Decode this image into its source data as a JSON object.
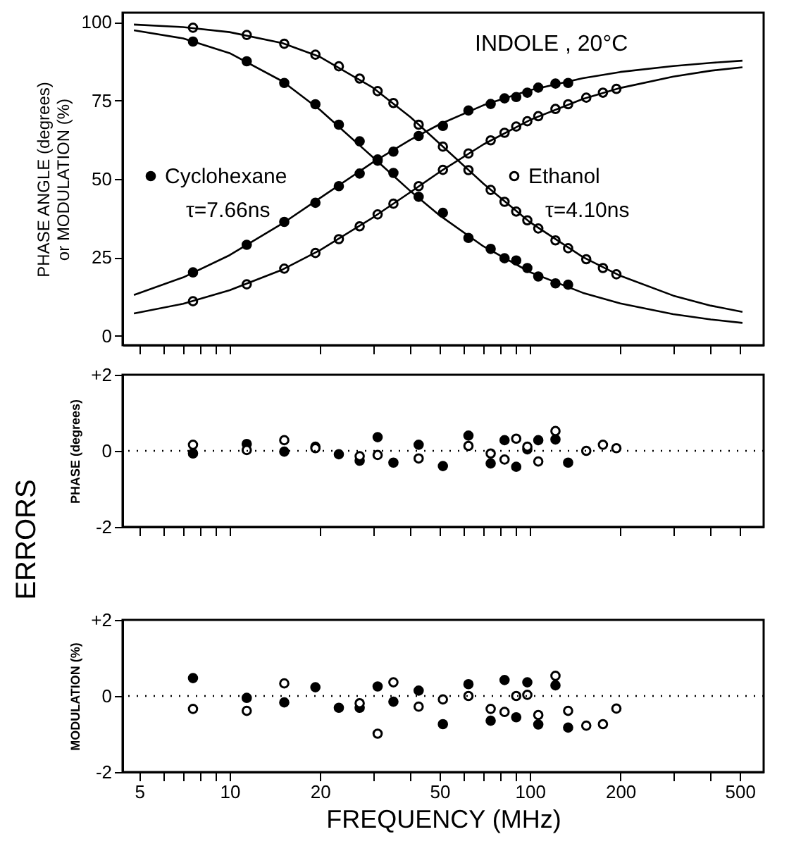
{
  "chart_data": [
    {
      "type": "scatter",
      "ylabel": "PHASE ANGLE (degrees)\nor MODULATION (%)",
      "annotations": [
        "INDOLE , 20°C",
        "τ=7.66ns",
        "τ=4.10ns"
      ],
      "legend": "left",
      "marker": "circle",
      "grid": false,
      "tick_labels": "y",
      "log": "x",
      "xlim": [
        4.4,
        600
      ],
      "ylim": [
        -3,
        103
      ],
      "xticks": [
        5,
        {
          "value": 6,
          "label": null
        },
        {
          "value": 7,
          "label": null
        },
        {
          "value": 8,
          "label": null
        },
        {
          "value": 9,
          "label": null
        },
        10,
        20,
        {
          "value": 30,
          "label": null
        },
        {
          "value": 40,
          "label": null
        },
        50,
        {
          "value": 60,
          "label": null
        },
        {
          "value": 70,
          "label": null
        },
        {
          "value": 80,
          "label": null
        },
        {
          "value": 90,
          "label": null
        },
        100,
        200,
        {
          "value": 300,
          "label": null
        },
        {
          "value": 400,
          "label": null
        },
        500
      ],
      "yticks": [
        0,
        25,
        50,
        75,
        100
      ],
      "x": [
        7.55,
        11.4,
        15.2,
        19.3,
        23.1,
        27.1,
        31.1,
        35.1,
        42.6,
        51.3,
        62.4,
        74,
        82.3,
        90,
        98,
        106.6,
        121.6,
        134,
        154,
        175,
        194
      ],
      "series": [
        {
          "name": "Cyclohexane",
          "color": "#000000",
          "values": [
            20.2,
            29.0,
            36.3,
            42.4,
            47.7,
            51.7,
            55.8,
            58.7,
            63.7,
            66.9,
            71.8,
            73.9,
            75.7,
            76.1,
            77.5,
            79.1,
            80.4,
            80.6,
            null,
            null,
            null
          ]
        },
        {
          "color": "#000000",
          "values": [
            93.8,
            87.5,
            80.6,
            73.8,
            67.3,
            62.0,
            56.2,
            51.9,
            44.3,
            39.2,
            31.2,
            27.7,
            24.7,
            24.0,
            21.6,
            18.9,
            16.7,
            16.3,
            null,
            null,
            null
          ]
        },
        {
          "name": "Ethanol",
          "color": "#ffffff",
          "values": [
            11.0,
            16.4,
            21.4,
            26.4,
            30.8,
            34.9,
            38.7,
            42.1,
            47.7,
            52.9,
            58.1,
            62.3,
            64.7,
            66.7,
            68.4,
            70.0,
            72.3,
            73.8,
            75.9,
            77.5,
            78.7
          ]
        },
        {
          "color": "#ffffff",
          "values": [
            98.2,
            95.9,
            93.1,
            89.6,
            85.9,
            82.0,
            78.0,
            74.2,
            67.3,
            60.3,
            52.8,
            46.5,
            42.7,
            39.6,
            36.8,
            34.2,
            30.4,
            27.9,
            24.4,
            21.6,
            19.6
          ]
        },
        {
          "type": "line",
          "marker": "none",
          "color": "#000000",
          "x": [
            4.8,
            7,
            10,
            15,
            20,
            30,
            40,
            50,
            70,
            100,
            150,
            200,
            300,
            400,
            510
          ],
          "values": [
            13.0,
            18.6,
            25.7,
            35.8,
            43.9,
            55.3,
            62.5,
            67.4,
            73.5,
            78.3,
            82.1,
            84.1,
            86.0,
            87.0,
            87.7
          ]
        },
        {
          "type": "line",
          "marker": "none",
          "color": "#000000",
          "x": [
            4.8,
            7,
            10,
            15,
            20,
            30,
            40,
            50,
            70,
            100,
            150,
            200,
            300,
            400,
            510
          ],
          "values": [
            97.4,
            94.8,
            90.1,
            81.1,
            72.0,
            56.9,
            46.1,
            38.4,
            28.5,
            20.3,
            13.7,
            10.3,
            6.9,
            5.2,
            4.1
          ]
        },
        {
          "type": "line",
          "marker": "none",
          "color": "#000000",
          "x": [
            4.8,
            7,
            10,
            15,
            20,
            30,
            40,
            50,
            70,
            100,
            150,
            200,
            300,
            400,
            510
          ],
          "values": [
            7.1,
            10.2,
            14.5,
            21.1,
            27.3,
            37.7,
            45.8,
            52.2,
            61.0,
            68.8,
            75.5,
            79.0,
            82.6,
            84.5,
            85.6
          ]
        },
        {
          "type": "line",
          "marker": "none",
          "color": "#000000",
          "x": [
            4.8,
            7,
            10,
            15,
            20,
            30,
            40,
            50,
            70,
            100,
            150,
            200,
            300,
            400,
            510
          ],
          "values": [
            99.2,
            98.4,
            96.8,
            93.3,
            88.9,
            79.1,
            69.7,
            61.3,
            48.5,
            36.2,
            25.1,
            19.1,
            12.8,
            9.6,
            7.6
          ]
        }
      ]
    },
    {
      "type": "scatter",
      "ylabel": "PHASE (degrees)",
      "annotations": [
        "ERRORS"
      ],
      "marker": "circle",
      "grid": false,
      "tick_labels": "y",
      "log": "x",
      "xlim": [
        4.4,
        600
      ],
      "ylim": [
        -2,
        2
      ],
      "xticks": [
        5,
        {
          "value": 6,
          "label": null
        },
        {
          "value": 7,
          "label": null
        },
        {
          "value": 8,
          "label": null
        },
        {
          "value": 9,
          "label": null
        },
        10,
        20,
        {
          "value": 30,
          "label": null
        },
        {
          "value": 40,
          "label": null
        },
        50,
        {
          "value": 60,
          "label": null
        },
        {
          "value": 70,
          "label": null
        },
        {
          "value": 80,
          "label": null
        },
        {
          "value": 90,
          "label": null
        },
        100,
        200,
        {
          "value": 300,
          "label": null
        },
        {
          "value": 400,
          "label": null
        },
        500
      ],
      "yticks": [
        {
          "value": 2,
          "label": "+2"
        },
        0,
        -2
      ],
      "ref_lines": [
        {
          "axis": "y",
          "value": 0,
          "line_style": "dotted"
        }
      ],
      "x": [
        7.55,
        11.4,
        15.2,
        19.3,
        23.1,
        27.1,
        31.1,
        35.1,
        42.6,
        51.3,
        62.4,
        74,
        82.3,
        90,
        98,
        106.6,
        121.6,
        134,
        154,
        175,
        194
      ],
      "series": [
        {
          "color": "#000000",
          "values": [
            -0.07,
            0.18,
            -0.02,
            0.11,
            -0.09,
            -0.26,
            0.36,
            -0.31,
            0.16,
            -0.4,
            0.4,
            -0.33,
            0.28,
            -0.42,
            0.04,
            0.28,
            0.3,
            -0.31,
            null,
            null,
            null
          ]
        },
        {
          "color": "#ffffff",
          "values": [
            0.16,
            0.02,
            0.28,
            0.07,
            null,
            -0.14,
            -0.11,
            null,
            -0.2,
            null,
            0.13,
            -0.07,
            -0.23,
            0.32,
            0.11,
            -0.28,
            0.52,
            null,
            0,
            0.16,
            0.07
          ]
        }
      ]
    },
    {
      "type": "scatter",
      "xlabel": "FREQUENCY  (MHz)",
      "ylabel": "MODULATION (%)",
      "marker": "circle",
      "grid": false,
      "log": "x",
      "xlim": [
        4.4,
        600
      ],
      "ylim": [
        -2,
        2
      ],
      "xticks": [
        5,
        {
          "value": 6,
          "label": null
        },
        {
          "value": 7,
          "label": null
        },
        {
          "value": 8,
          "label": null
        },
        {
          "value": 9,
          "label": null
        },
        10,
        20,
        {
          "value": 30,
          "label": null
        },
        {
          "value": 40,
          "label": null
        },
        50,
        {
          "value": 60,
          "label": null
        },
        {
          "value": 70,
          "label": null
        },
        {
          "value": 80,
          "label": null
        },
        {
          "value": 90,
          "label": null
        },
        100,
        200,
        {
          "value": 300,
          "label": null
        },
        {
          "value": 400,
          "label": null
        },
        500
      ],
      "yticks": [
        {
          "value": 2,
          "label": "+2"
        },
        0,
        -2
      ],
      "ref_lines": [
        {
          "axis": "y",
          "value": 0,
          "line_style": "dotted"
        }
      ],
      "x": [
        7.55,
        11.4,
        15.2,
        19.3,
        23.1,
        27.1,
        31.1,
        35.1,
        42.6,
        51.3,
        62.4,
        74,
        82.3,
        90,
        98,
        106.6,
        121.6,
        134,
        154,
        175,
        194
      ],
      "series": [
        {
          "color": "#000000",
          "values": [
            0.47,
            -0.05,
            -0.17,
            0.23,
            -0.31,
            -0.31,
            0.25,
            -0.15,
            0.14,
            -0.74,
            0.31,
            -0.65,
            0.42,
            -0.56,
            0.36,
            -0.75,
            0.28,
            -0.83,
            null,
            null,
            null
          ]
        },
        {
          "color": "#ffffff",
          "values": [
            -0.34,
            -0.39,
            0.33,
            null,
            null,
            -0.19,
            -0.99,
            0.36,
            -0.28,
            -0.09,
            0,
            -0.34,
            -0.42,
            0,
            0.03,
            -0.5,
            0.53,
            -0.39,
            -0.78,
            -0.74,
            -0.33
          ]
        }
      ]
    }
  ]
}
